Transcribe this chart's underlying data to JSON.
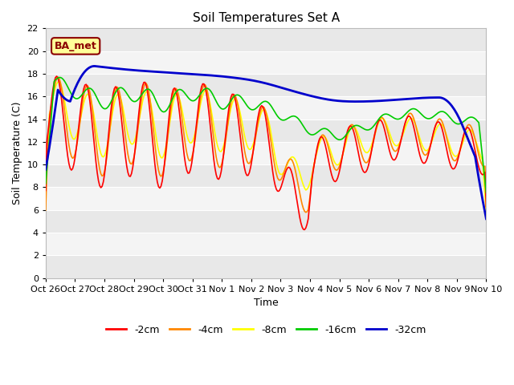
{
  "title": "Soil Temperatures Set A",
  "xlabel": "Time",
  "ylabel": "Soil Temperature (C)",
  "ylim": [
    0,
    22
  ],
  "yticks": [
    0,
    2,
    4,
    6,
    8,
    10,
    12,
    14,
    16,
    18,
    20,
    22
  ],
  "x_labels": [
    "Oct 26",
    "Oct 27",
    "Oct 28",
    "Oct 29",
    "Oct 30",
    "Oct 31",
    "Nov 1",
    "Nov 2",
    "Nov 3",
    "Nov 4",
    "Nov 5",
    "Nov 6",
    "Nov 7",
    "Nov 8",
    "Nov 9",
    "Nov 10"
  ],
  "colors": {
    "-2cm": "#ff0000",
    "-4cm": "#ff8800",
    "-8cm": "#ffff00",
    "-16cm": "#00cc00",
    "-32cm": "#0000cc"
  },
  "annotation_text": "BA_met",
  "annotation_color": "#8B0000",
  "annotation_bg": "#ffff99",
  "linewidth": 1.2,
  "bg_stripe_dark": "#e8e8e8",
  "bg_stripe_light": "#f4f4f4",
  "grid_color": "#ffffff"
}
